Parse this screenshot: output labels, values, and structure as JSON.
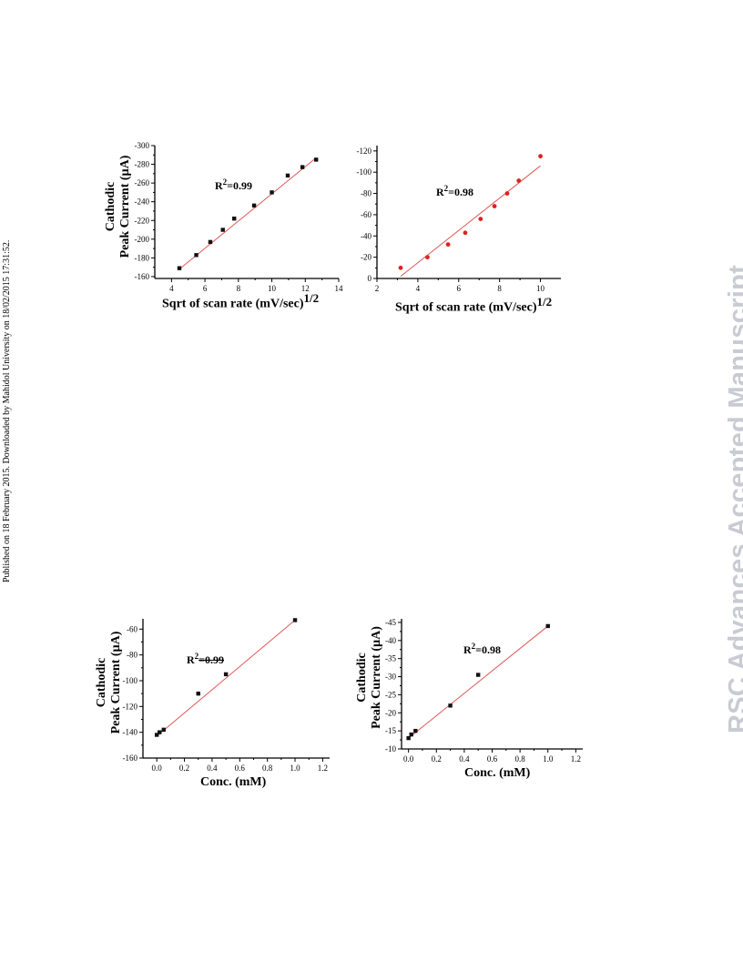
{
  "page": {
    "side_note": "Published on 18 February 2015. Downloaded by Mahidol University on 18/02/2015 17:31:52.",
    "watermark": "RSC Advances Accepted Manuscript"
  },
  "colors": {
    "fit_line": "#e05555",
    "axis": "#000000",
    "marker_black": "#111111",
    "marker_red": "#e02020",
    "watermark": "#c9cbd3"
  },
  "chart_data": [
    {
      "type": "scatter",
      "ylabel_line1": "Cathodic",
      "ylabel_line2": "Peak Current (µA)",
      "xlabel": "Sqrt of scan rate (mV/sec)",
      "xlabel_sup": "1/2",
      "annotation": {
        "text": "=0.99",
        "prefix": "R",
        "sup": "2"
      },
      "xlim": [
        3,
        14
      ],
      "ylim": [
        -158,
        -300
      ],
      "xticks": [
        4,
        6,
        8,
        10,
        12,
        14
      ],
      "yticks": [
        -160,
        -180,
        -200,
        -220,
        -240,
        -260,
        -280,
        -300
      ],
      "marker_color": "#111111",
      "x": [
        4.47,
        5.48,
        6.32,
        7.07,
        7.75,
        8.94,
        10.0,
        10.95,
        11.83,
        12.65
      ],
      "y": [
        -169,
        -183,
        -197,
        -210,
        -222,
        -236,
        -250,
        -268,
        -277,
        -285
      ],
      "fit": {
        "x": [
          4.47,
          12.65
        ],
        "y": [
          -168,
          -287
        ]
      }
    },
    {
      "type": "scatter",
      "ylabel_line1": "",
      "ylabel_line2": "",
      "xlabel": "Sqrt of scan rate (mV/sec)",
      "xlabel_sup": "1/2",
      "annotation": {
        "text": "=0.98",
        "prefix": "R",
        "sup": "2"
      },
      "xlim": [
        2,
        11
      ],
      "ylim": [
        0,
        -125
      ],
      "xticks": [
        2,
        4,
        6,
        8,
        10
      ],
      "yticks": [
        0,
        -20,
        -40,
        -60,
        -80,
        -100,
        -120
      ],
      "marker_color": "#e02020",
      "x": [
        3.16,
        4.47,
        5.48,
        6.32,
        7.07,
        7.75,
        8.37,
        8.94,
        10.0
      ],
      "y": [
        -10,
        -20,
        -32,
        -43,
        -56,
        -68,
        -80,
        -92,
        -115
      ],
      "fit": {
        "x": [
          3.16,
          10.0
        ],
        "y": [
          -2,
          -106
        ]
      }
    },
    {
      "type": "scatter",
      "ylabel_line1": "Cathodic",
      "ylabel_line2": "Peak Current (µA)",
      "xlabel": "Conc. (mM)",
      "xlabel_sup": "",
      "annotation": {
        "text": "=0.99",
        "prefix": "R",
        "sup": "2"
      },
      "xlim": [
        -0.1,
        1.25
      ],
      "ylim": [
        -160,
        -52
      ],
      "xticks": [
        0.0,
        0.2,
        0.4,
        0.6,
        0.8,
        1.0,
        1.2
      ],
      "yticks": [
        -160,
        -140,
        -120,
        -100,
        -80,
        -60
      ],
      "marker_color": "#111111",
      "x": [
        0.0,
        0.02,
        0.05,
        0.3,
        0.5,
        1.0
      ],
      "y": [
        -142,
        -140,
        -138,
        -110,
        -95,
        -53
      ],
      "fit": {
        "x": [
          0.0,
          1.0
        ],
        "y": [
          -143,
          -53
        ]
      }
    },
    {
      "type": "scatter",
      "ylabel_line1": "Cathodic",
      "ylabel_line2": "Peak Current (µA)",
      "xlabel": "Conc. (mM)",
      "xlabel_sup": "",
      "annotation": {
        "text": "=0.98",
        "prefix": "R",
        "sup": "2"
      },
      "xlim": [
        -0.05,
        1.25
      ],
      "ylim": [
        -10,
        -46
      ],
      "xticks": [
        0.0,
        0.2,
        0.4,
        0.6,
        0.8,
        1.0,
        1.2
      ],
      "yticks": [
        -10,
        -15,
        -20,
        -25,
        -30,
        -35,
        -40,
        -45
      ],
      "marker_color": "#111111",
      "x": [
        0.0,
        0.02,
        0.05,
        0.3,
        0.5,
        1.0
      ],
      "y": [
        -13,
        -14,
        -15,
        -22,
        -30.5,
        -44
      ],
      "fit": {
        "x": [
          0.0,
          1.0
        ],
        "y": [
          -13,
          -44
        ]
      }
    }
  ]
}
